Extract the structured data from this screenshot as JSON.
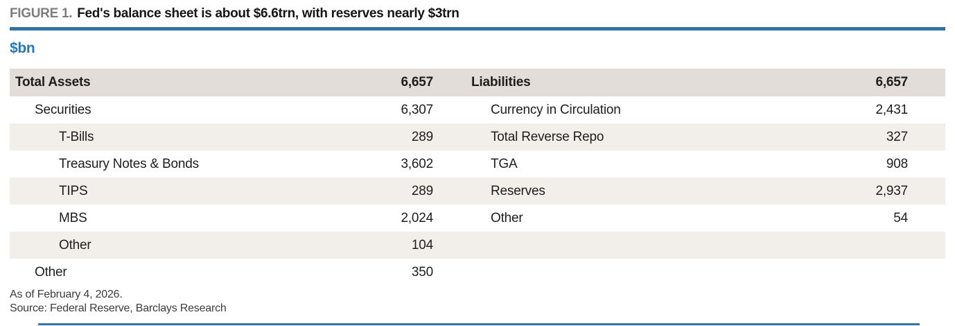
{
  "header": {
    "figure_label": "FIGURE 1.",
    "title": "Fed's balance sheet is about $6.6trn, with reserves nearly $3trn",
    "units": "$bn"
  },
  "table": {
    "header": {
      "left_label": "Total Assets",
      "left_value": "6,657",
      "right_label": "Liabilities",
      "right_value": "6,657"
    },
    "rows": [
      {
        "left_label": "Securities",
        "left_value": "6,307",
        "right_label": "Currency in Circulation",
        "right_value": "2,431"
      },
      {
        "left_label": "T-Bills",
        "left_value": "289",
        "right_label": "Total Reverse Repo",
        "right_value": "327"
      },
      {
        "left_label": "Treasury Notes & Bonds",
        "left_value": "3,602",
        "right_label": "TGA",
        "right_value": "908"
      },
      {
        "left_label": "TIPS",
        "left_value": "289",
        "right_label": "Reserves",
        "right_value": "2,937"
      },
      {
        "left_label": "MBS",
        "left_value": "2,024",
        "right_label": "Other",
        "right_value": "54"
      },
      {
        "left_label": "Other",
        "left_value": "104",
        "right_label": "",
        "right_value": ""
      },
      {
        "left_label": "Other",
        "left_value": "350",
        "right_label": "",
        "right_value": ""
      }
    ]
  },
  "footer": {
    "as_of": "As of February 4, 2026.",
    "source": "Source: Federal Reserve, Barclays Research"
  },
  "colors": {
    "accent_blue": "#3274A8",
    "units_blue": "#2478BE",
    "header_band": "#E2DDD8",
    "row_shade": "#F2EFEA",
    "figure_label_gray": "#7D7D7D",
    "text": "#1E1E1E"
  }
}
